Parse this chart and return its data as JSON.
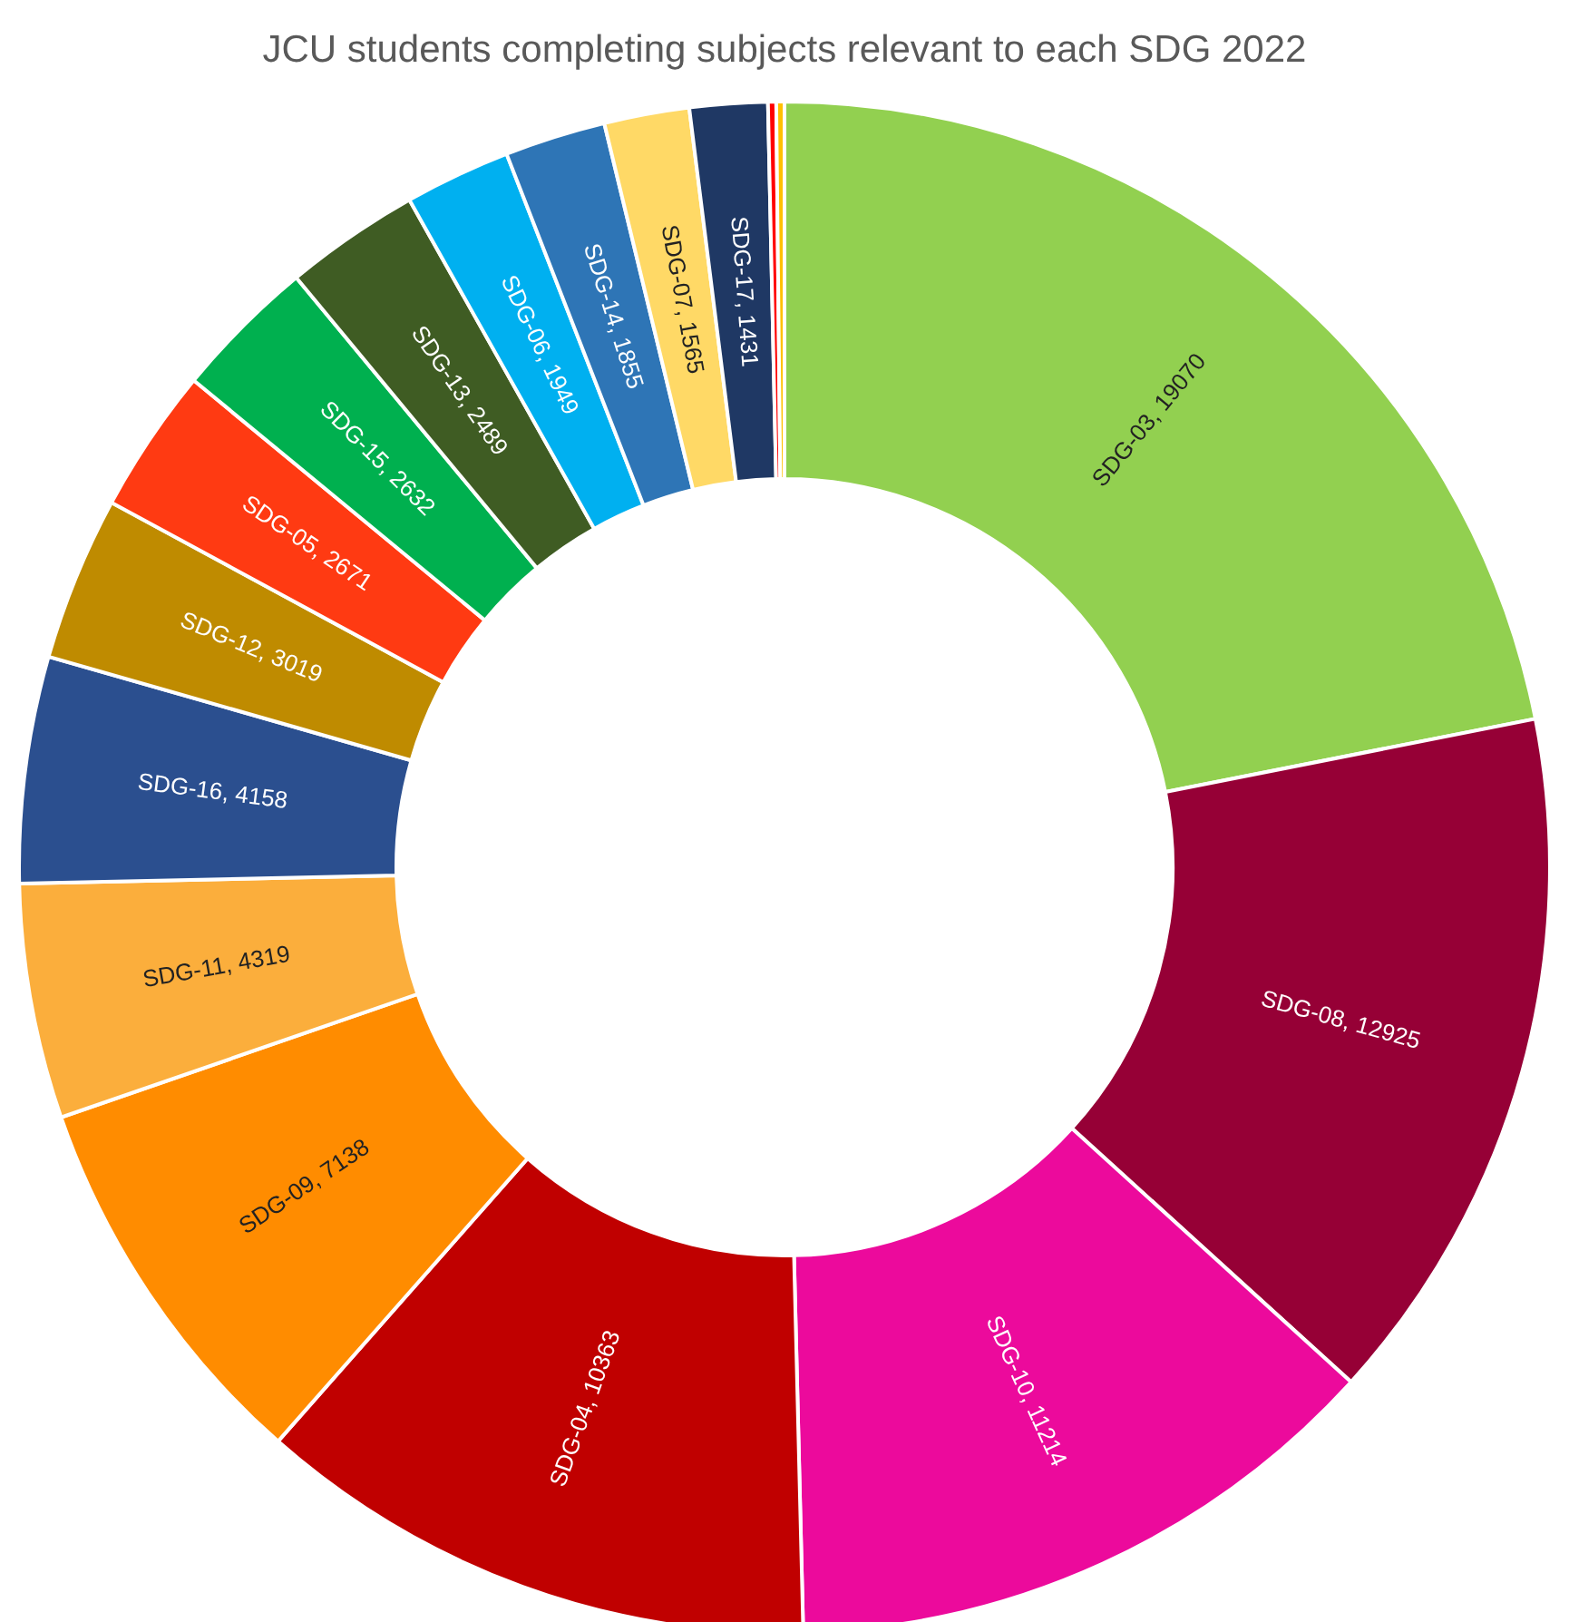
{
  "chart_data": {
    "type": "donut",
    "title": "JCU students completing subjects relevant to each SDG 2022",
    "categories": [
      "SDG-03",
      "SDG-08",
      "SDG-10",
      "SDG-04",
      "SDG-09",
      "SDG-11",
      "SDG-16",
      "SDG-12",
      "SDG-05",
      "SDG-15",
      "SDG-13",
      "SDG-06",
      "SDG-14",
      "SDG-07",
      "SDG-17",
      null,
      null
    ],
    "values": [
      19070,
      12925,
      11214,
      10363,
      7138,
      4319,
      4158,
      3019,
      2671,
      2632,
      2489,
      1949,
      1855,
      1565,
      1431,
      150,
      150
    ],
    "colors": [
      "#92d050",
      "#960036",
      "#ec0a9c",
      "#c00000",
      "#ff8c00",
      "#fbae3c",
      "#2b4f8f",
      "#bf8b00",
      "#ff3a12",
      "#00b04f",
      "#3f5c23",
      "#00b0f0",
      "#2e75b6",
      "#ffd966",
      "#1f3864",
      "#ff0000",
      "#ffc000"
    ],
    "value_labels": [
      ", 19070",
      ", 12925",
      ", 11214",
      ", 10363",
      ", 7138",
      ", 4319",
      ", 4158",
      ", 3019",
      ", 2671",
      ", 2632",
      ", 2489",
      ", 1949",
      ", 1855",
      ", 1565",
      ", 1431",
      null,
      null
    ]
  }
}
